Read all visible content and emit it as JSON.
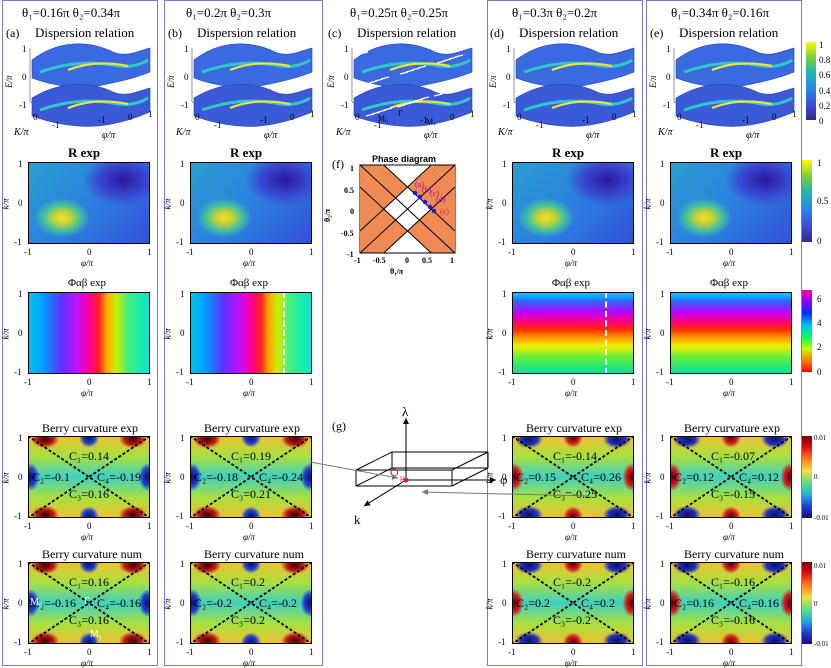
{
  "columns": [
    {
      "key": "a",
      "header": "θ₁=0.16π  θ₂=0.34π",
      "label": "(a)",
      "berry_exp": {
        "c_top": "C₁=0.14",
        "c_left": "C₂=-0.1",
        "c_right": "C₄=-0.19",
        "c_bottom": "C₃=0.16"
      },
      "berry_num": {
        "c_top": "C₁=0.16",
        "c_left": "C₂=-0.16",
        "c_right": "C₄=-0.16",
        "c_bottom": "C₃=0.16"
      }
    },
    {
      "key": "b",
      "header": "θ₁=0.2π  θ₂=0.3π",
      "label": "(b)",
      "berry_exp": {
        "c_top": "C₁=0.19",
        "c_left": "C₂=-0.18",
        "c_right": "C₄=-0.24",
        "c_bottom": "C₃=0.21"
      },
      "berry_num": {
        "c_top": "C₁=0.2",
        "c_left": "C₂=-0.2",
        "c_right": "C₄=-0.2",
        "c_bottom": "C₃=0.2"
      }
    },
    {
      "key": "c",
      "header": "θ₁=0.25π  θ₂=0.25π",
      "label": "(c)"
    },
    {
      "key": "d",
      "header": "θ₁=0.3π  θ₂=0.2π",
      "label": "(d)",
      "berry_exp": {
        "c_top": "C₁=-0.14",
        "c_left": "C₂=0.15",
        "c_right": "C₄=0.26",
        "c_bottom": "C₃=-0.25"
      },
      "berry_num": {
        "c_top": "C₁=-0.2",
        "c_left": "C₂=0.2",
        "c_right": "C₄=0.2",
        "c_bottom": "C₃=-0.2"
      }
    },
    {
      "key": "e",
      "header": "θ₁=0.34π  θ₂=0.16π",
      "label": "(e)",
      "berry_exp": {
        "c_top": "C₁=-0.07",
        "c_left": "C₂=0.12",
        "c_right": "C₄=0.12",
        "c_bottom": "C₃=-0.15"
      },
      "berry_num": {
        "c_top": "C₁=-0.16",
        "c_left": "C₂=0.16",
        "c_right": "C₄=0.16",
        "c_bottom": "C₃=-0.16"
      }
    }
  ],
  "titles": {
    "dispersion": "Dispersion relation",
    "r_exp": "R exp",
    "phi_exp": "Φαβ exp",
    "berry_exp": "Berry curvature exp",
    "berry_num": "Berry curvature num",
    "phase_diagram": "Phase diagram"
  },
  "axes": {
    "E": "E/π",
    "K": "K/π",
    "phi": "φ/π",
    "k": "k/π",
    "theta1": "θ₁/π",
    "theta2": "θ₂/π",
    "t_neg1": "-1",
    "t_0": "0",
    "t_1": "1",
    "t_neg05": "-0.5",
    "t_05": "0.5"
  },
  "labels": {
    "f": "(f)",
    "g": "(g)",
    "M0": "M₀",
    "M1": "M₁",
    "gamma": "Γ",
    "lambda": "λ",
    "phi_axis": "φ",
    "k_axis": "k",
    "origin": "O",
    "origin_sub": "μ"
  },
  "colorbars": {
    "disp": [
      "1",
      "0.8",
      "0.6",
      "0.4",
      "0.2",
      "0"
    ],
    "r": [
      "1",
      "0.5",
      "0"
    ],
    "phi": [
      "6",
      "4",
      "2",
      "0"
    ],
    "berry": [
      "0.01",
      "0",
      "-0.01"
    ]
  },
  "phase_points": [
    "(a)",
    "(b)",
    "(c)",
    "(d)",
    "(e)"
  ],
  "colors": {
    "box": "#7b78d8",
    "orange": "#f08a55"
  }
}
